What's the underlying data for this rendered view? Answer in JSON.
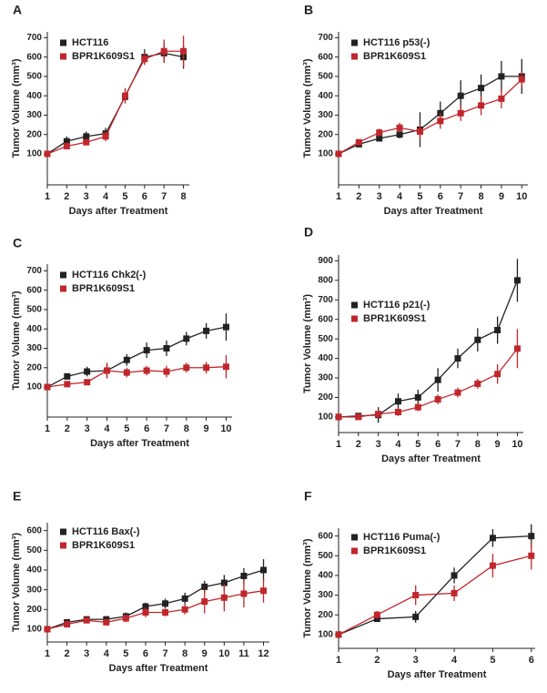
{
  "chart_data": [
    {
      "type": "line",
      "label": "A",
      "xlabel": "Days after Treatment",
      "ylabel": "Tumor Volume (mm³)",
      "x": [
        1,
        2,
        3,
        4,
        5,
        6,
        7,
        8
      ],
      "xlim": [
        1,
        8.3
      ],
      "xticks": [
        1,
        2,
        3,
        4,
        5,
        6,
        7,
        8
      ],
      "ylim": [
        -60,
        730
      ],
      "yticks": [
        100,
        200,
        300,
        400,
        500,
        600,
        700
      ],
      "series": [
        {
          "name": "HCT116",
          "color": "#222222",
          "values": [
            100,
            165,
            190,
            205,
            395,
            600,
            620,
            600
          ],
          "errors": [
            0,
            25,
            25,
            30,
            25,
            40,
            50,
            60
          ]
        },
        {
          "name": "BPR1K609S1",
          "color": "#c0272d",
          "values": [
            100,
            140,
            160,
            190,
            400,
            590,
            630,
            630
          ],
          "errors": [
            0,
            15,
            15,
            25,
            40,
            30,
            60,
            80
          ]
        }
      ]
    },
    {
      "type": "line",
      "label": "B",
      "xlabel": "Days after Treatment",
      "ylabel": "Tumor Volume (mm³)",
      "x": [
        1,
        2,
        3,
        4,
        5,
        6,
        7,
        8,
        9,
        10
      ],
      "xlim": [
        1,
        10.3
      ],
      "xticks": [
        1,
        2,
        3,
        4,
        5,
        6,
        7,
        8,
        9,
        10
      ],
      "ylim": [
        -60,
        730
      ],
      "yticks": [
        100,
        200,
        300,
        400,
        500,
        600,
        700
      ],
      "series": [
        {
          "name": "HCT116 p53(-)",
          "color": "#222222",
          "values": [
            100,
            150,
            180,
            200,
            225,
            310,
            400,
            440,
            500,
            500
          ],
          "errors": [
            0,
            15,
            15,
            20,
            90,
            60,
            80,
            70,
            80,
            90
          ]
        },
        {
          "name": "BPR1K609S1",
          "color": "#c0272d",
          "values": [
            100,
            160,
            210,
            235,
            215,
            270,
            310,
            350,
            385,
            485
          ],
          "errors": [
            0,
            15,
            20,
            25,
            40,
            40,
            40,
            50,
            50,
            40
          ]
        }
      ]
    },
    {
      "type": "line",
      "label": "C",
      "xlabel": "Days after Treatment",
      "ylabel": "Tumor Volume (mm³)",
      "x": [
        1,
        2,
        3,
        4,
        5,
        6,
        7,
        8,
        9,
        10
      ],
      "xlim": [
        1,
        10.3
      ],
      "xticks": [
        1,
        2,
        3,
        4,
        5,
        6,
        7,
        8,
        9,
        10
      ],
      "ylim": [
        -55,
        735
      ],
      "yticks": [
        100,
        200,
        300,
        400,
        500,
        600,
        700
      ],
      "series": [
        {
          "name": "HCT116 Chk2(-)",
          "color": "#222222",
          "values": [
            100,
            155,
            180,
            185,
            240,
            290,
            300,
            350,
            390,
            410
          ],
          "errors": [
            0,
            10,
            25,
            40,
            30,
            40,
            40,
            35,
            40,
            70
          ]
        },
        {
          "name": "BPR1K609S1",
          "color": "#c0272d",
          "values": [
            100,
            115,
            125,
            185,
            175,
            185,
            180,
            200,
            200,
            205
          ],
          "errors": [
            0,
            10,
            15,
            40,
            25,
            25,
            30,
            25,
            30,
            60
          ]
        }
      ]
    },
    {
      "type": "line",
      "label": "D",
      "xlabel": "Days after Treatment",
      "ylabel": "Tumor Volume (mm³)",
      "x": [
        1,
        2,
        3,
        4,
        5,
        6,
        7,
        8,
        9,
        10
      ],
      "xlim": [
        1,
        10.3
      ],
      "xticks": [
        1,
        2,
        3,
        4,
        5,
        6,
        7,
        8,
        9,
        10
      ],
      "ylim": [
        20,
        930
      ],
      "yticks": [
        100,
        200,
        300,
        400,
        500,
        600,
        700,
        800,
        900
      ],
      "series": [
        {
          "name": "HCT116 p21(-)",
          "color": "#222222",
          "values": [
            100,
            105,
            110,
            180,
            200,
            290,
            400,
            495,
            545,
            800
          ],
          "errors": [
            0,
            10,
            40,
            40,
            40,
            60,
            50,
            60,
            70,
            110
          ]
        },
        {
          "name": "BPR1K609S1",
          "color": "#c0272d",
          "values": [
            100,
            100,
            115,
            125,
            150,
            190,
            225,
            270,
            320,
            450
          ],
          "errors": [
            0,
            10,
            20,
            20,
            20,
            25,
            25,
            25,
            50,
            100
          ]
        }
      ]
    },
    {
      "type": "line",
      "label": "E",
      "xlabel": "Days after Treatment",
      "ylabel": "Tumor Volume (mm³)",
      "x": [
        1,
        2,
        3,
        4,
        5,
        6,
        7,
        8,
        9,
        10,
        11,
        12
      ],
      "xlim": [
        1,
        12.3
      ],
      "xticks": [
        1,
        2,
        3,
        4,
        5,
        6,
        7,
        8,
        9,
        10,
        11,
        12
      ],
      "ylim": [
        35,
        640
      ],
      "yticks": [
        100,
        200,
        300,
        400,
        500,
        600
      ],
      "series": [
        {
          "name": "HCT116 Bax(-)",
          "color": "#222222",
          "values": [
            100,
            135,
            150,
            150,
            165,
            215,
            230,
            255,
            315,
            335,
            370,
            400
          ],
          "errors": [
            0,
            10,
            10,
            15,
            20,
            20,
            25,
            30,
            30,
            40,
            40,
            55
          ]
        },
        {
          "name": "BPR1K609S1",
          "color": "#c0272d",
          "values": [
            100,
            125,
            145,
            135,
            155,
            185,
            185,
            200,
            240,
            260,
            280,
            295
          ],
          "errors": [
            0,
            10,
            10,
            15,
            20,
            25,
            20,
            25,
            60,
            70,
            70,
            60
          ]
        }
      ]
    },
    {
      "type": "line",
      "label": "F",
      "xlabel": "Days after Treatment",
      "ylabel": "Tumor Volume (mm³)",
      "x": [
        1,
        2,
        3,
        4,
        5,
        6
      ],
      "xlim": [
        1,
        6.1
      ],
      "xticks": [
        1,
        2,
        3,
        4,
        5,
        6
      ],
      "ylim": [
        30,
        640
      ],
      "yticks": [
        100,
        200,
        300,
        400,
        500,
        600
      ],
      "series": [
        {
          "name": "HCT116 Puma(-)",
          "color": "#222222",
          "values": [
            100,
            180,
            190,
            400,
            590,
            600
          ],
          "errors": [
            0,
            15,
            30,
            40,
            45,
            60
          ]
        },
        {
          "name": "BPR1K609S1",
          "color": "#c0272d",
          "values": [
            100,
            200,
            300,
            310,
            450,
            500
          ],
          "errors": [
            0,
            20,
            50,
            40,
            60,
            70
          ]
        }
      ]
    }
  ]
}
